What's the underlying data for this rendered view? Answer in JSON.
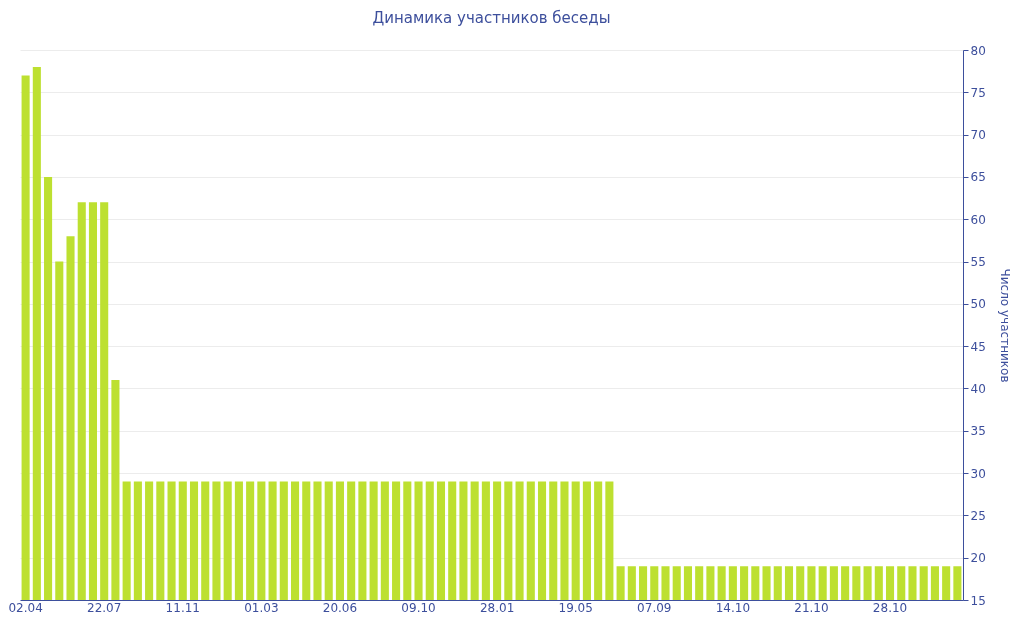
{
  "chart_data": {
    "type": "bar",
    "title": "Динамика участников беседы",
    "ylabel": "Число участников",
    "categories": [
      "02.04",
      null,
      null,
      null,
      null,
      null,
      null,
      "22.07",
      null,
      null,
      null,
      null,
      null,
      null,
      "11.11",
      null,
      null,
      null,
      null,
      null,
      null,
      "01.03",
      null,
      null,
      null,
      null,
      null,
      null,
      "20.06",
      null,
      null,
      null,
      null,
      null,
      null,
      "09.10",
      null,
      null,
      null,
      null,
      null,
      null,
      "28.01",
      null,
      null,
      null,
      null,
      null,
      null,
      "19.05",
      null,
      null,
      null,
      null,
      null,
      null,
      "07.09",
      null,
      null,
      null,
      null,
      null,
      null,
      "14.10",
      null,
      null,
      null,
      null,
      null,
      null,
      "21.10",
      null,
      null,
      null,
      null,
      null,
      null,
      "28.10",
      null,
      null,
      null,
      null,
      null,
      null
    ],
    "values": [
      77,
      78,
      65,
      55,
      58,
      62,
      62,
      62,
      41,
      29,
      29,
      29,
      29,
      29,
      29,
      29,
      29,
      29,
      29,
      29,
      29,
      29,
      29,
      29,
      29,
      29,
      29,
      29,
      29,
      29,
      29,
      29,
      29,
      29,
      29,
      29,
      29,
      29,
      29,
      29,
      29,
      29,
      29,
      29,
      29,
      29,
      29,
      29,
      29,
      29,
      29,
      29,
      29,
      19,
      19,
      19,
      19,
      19,
      19,
      19,
      19,
      19,
      19,
      19,
      19,
      19,
      19,
      19,
      19,
      19,
      19,
      19,
      19,
      19,
      19,
      19,
      19,
      19,
      19,
      19,
      19,
      19,
      19,
      19
    ],
    "color": "#bde030",
    "ylim": [
      15,
      80
    ],
    "yticks": [
      15,
      20,
      25,
      30,
      35,
      40,
      45,
      50,
      55,
      60,
      65,
      70,
      75,
      80
    ],
    "grid": "y"
  }
}
